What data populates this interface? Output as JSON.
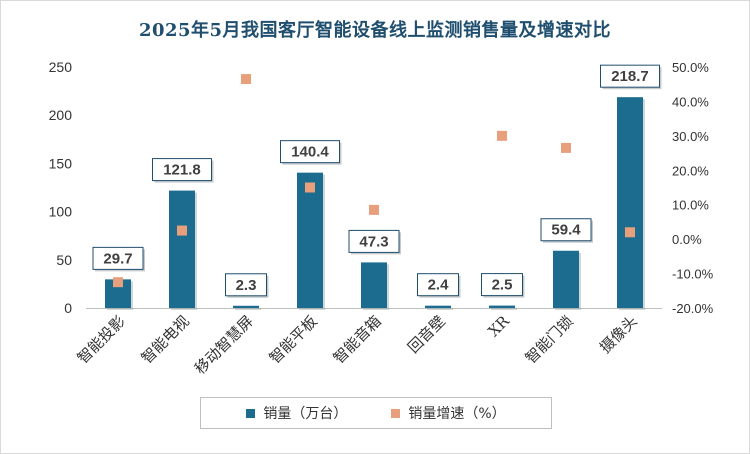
{
  "title": "2025年5月我国客厅智能设备线上监测销售量及增速对比",
  "chart_data": {
    "type": "bar",
    "categories": [
      "智能投影",
      "智能电视",
      "移动智慧屏",
      "智能平板",
      "智能音箱",
      "回音壁",
      "XR",
      "智能门锁",
      "摄像头"
    ],
    "series": [
      {
        "name": "销量（万台）",
        "type": "bar",
        "axis": "left",
        "color": "#1b6c8f",
        "values": [
          29.7,
          121.8,
          2.3,
          140.4,
          47.3,
          2.4,
          2.5,
          59.4,
          218.7
        ],
        "labels": [
          "29.7",
          "121.8",
          "2.3",
          "140.4",
          "47.3",
          "2.4",
          "2.5",
          "59.4",
          "218.7"
        ]
      },
      {
        "name": "销量增速（%）",
        "type": "scatter",
        "axis": "right",
        "color": "#e8a07c",
        "values": [
          -12.5,
          2.5,
          46.5,
          15.0,
          8.5,
          null,
          30.0,
          26.5,
          2.0
        ]
      }
    ],
    "y_left": {
      "min": 0,
      "max": 250,
      "ticks": [
        "0",
        "50",
        "100",
        "150",
        "200",
        "250"
      ]
    },
    "y_right": {
      "min": -20,
      "max": 50,
      "ticks": [
        "-20.0%",
        "-10.0%",
        "0.0%",
        "10.0%",
        "20.0%",
        "30.0%",
        "40.0%",
        "50.0%"
      ]
    },
    "grid": false,
    "legend_position": "bottom"
  }
}
